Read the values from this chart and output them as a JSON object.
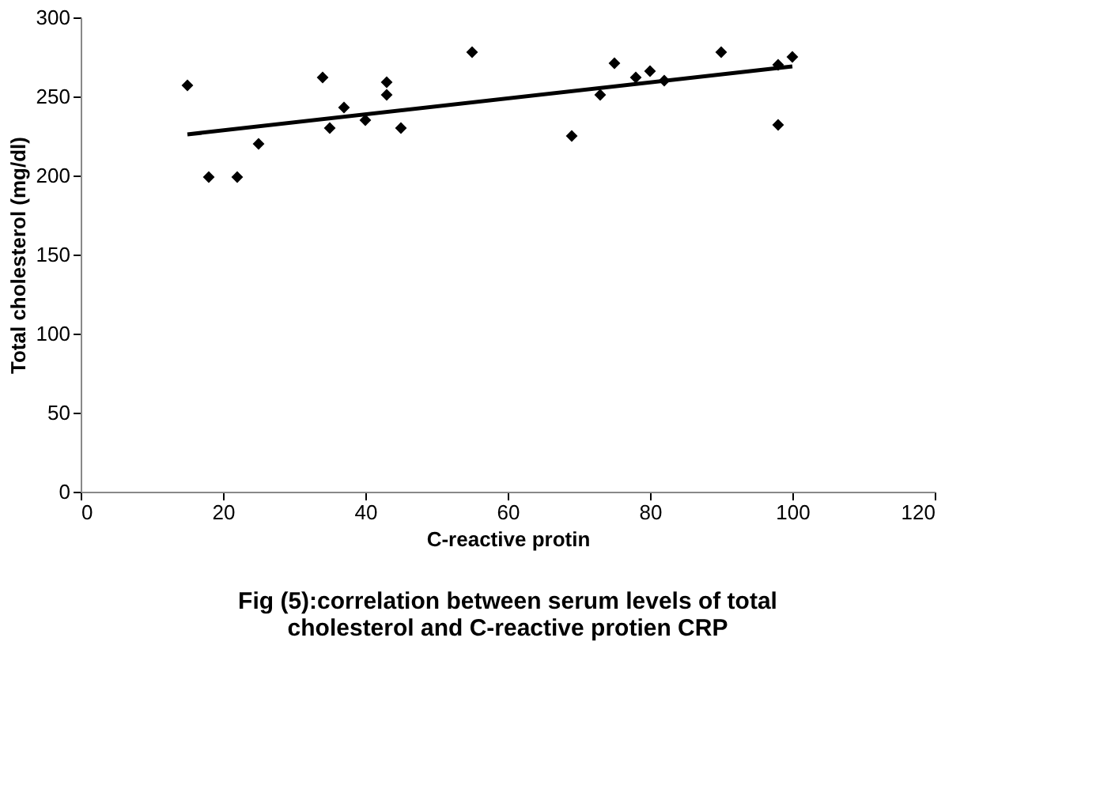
{
  "chart_data": {
    "type": "scatter",
    "title": "Fig (5):correlation between serum levels of total\ncholesterol and C-reactive protien CRP",
    "xlabel": "C-reactive protin",
    "ylabel": "Total cholesterol (mg/dl)",
    "xlim": [
      0,
      120
    ],
    "xticks": [
      0,
      20,
      40,
      60,
      80,
      100,
      120
    ],
    "ylim": [
      0,
      300
    ],
    "yticks": [
      0,
      50,
      100,
      150,
      200,
      250,
      300
    ],
    "grid": false,
    "series": [
      {
        "marker": "diamond",
        "color": "#000000",
        "x": [
          15,
          18,
          22,
          25,
          34,
          35,
          37,
          40,
          43,
          43,
          45,
          55,
          69,
          73,
          75,
          78,
          80,
          82,
          90,
          98,
          98,
          100
        ],
        "values": [
          257,
          199,
          199,
          220,
          262,
          230,
          243,
          235,
          251,
          259,
          230,
          278,
          225,
          251,
          271,
          262,
          266,
          260,
          278,
          270,
          232,
          275
        ]
      },
      {
        "type": "line",
        "line_style": "solid",
        "color": "#000000",
        "x": [
          15,
          100
        ],
        "values": [
          226,
          269
        ]
      }
    ]
  }
}
